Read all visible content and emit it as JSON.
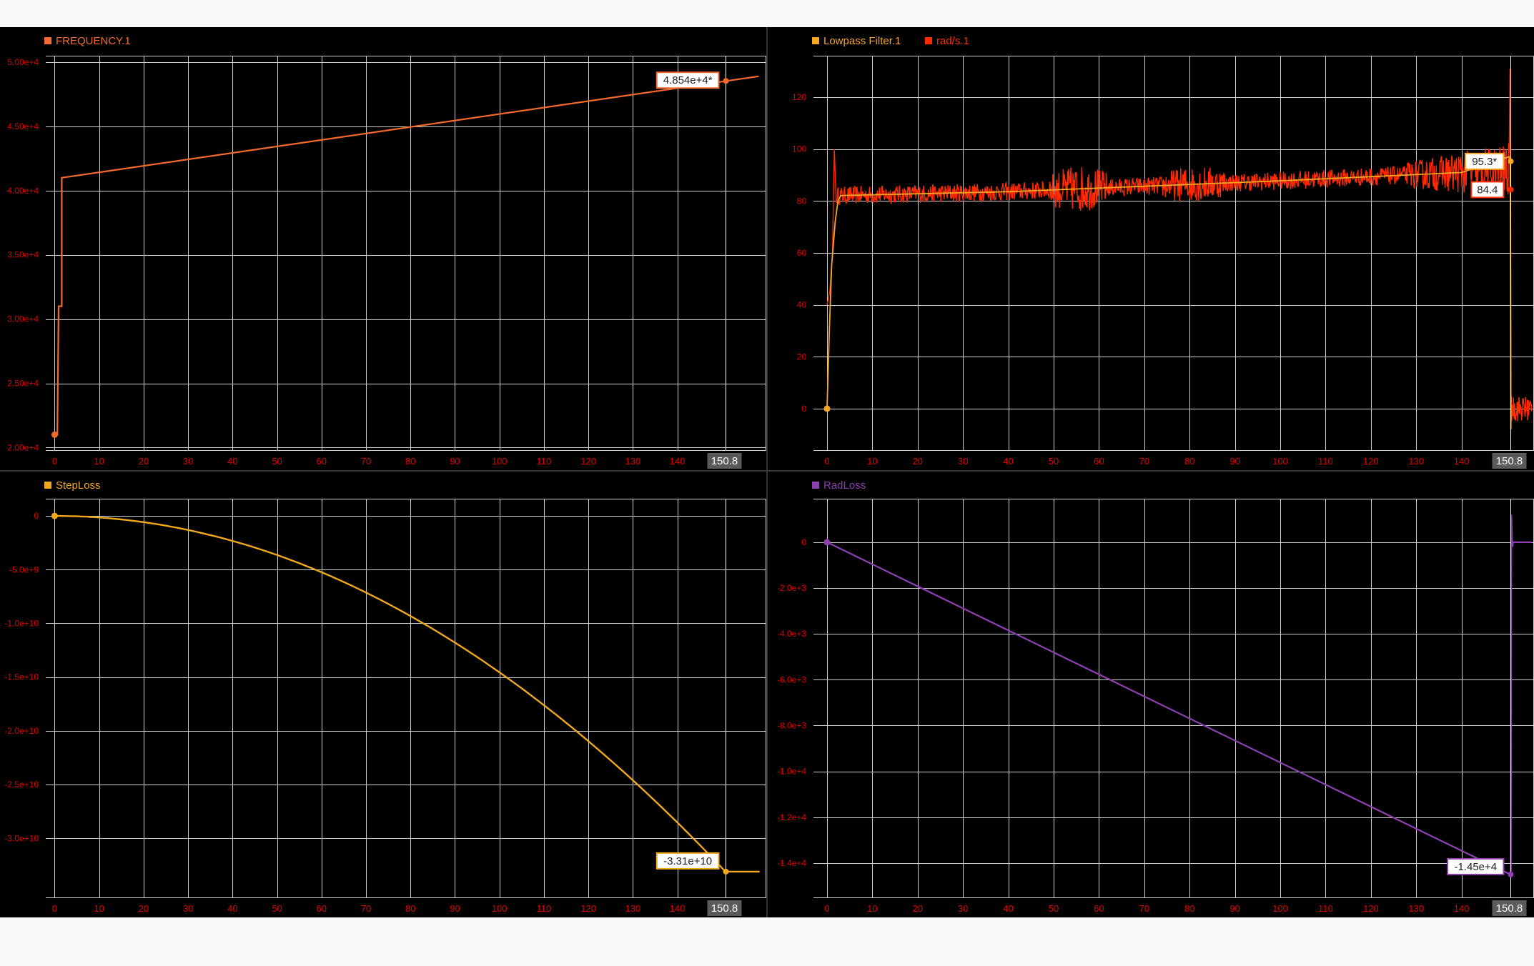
{
  "colors": {
    "frequency": "#f26a2e",
    "lowpass": "#f5a623",
    "rads": "#ff2a00",
    "steploss": "#f0a81c",
    "radloss": "#8e3fb0",
    "tick": "#e00000",
    "grid": "#cfcfcf",
    "cursor_bg": "#5a5a5a"
  },
  "cursor": {
    "x": 150.8,
    "label": "150.8"
  },
  "chart_data": [
    {
      "id": "frequency",
      "type": "line",
      "xlim": [
        -2,
        160
      ],
      "ylim": [
        19800,
        50500
      ],
      "x_ticks": [
        0,
        10,
        20,
        30,
        40,
        50,
        60,
        70,
        80,
        90,
        100,
        110,
        120,
        130,
        140
      ],
      "y_ticks": [
        20000,
        25000,
        30000,
        35000,
        40000,
        45000,
        50000
      ],
      "y_tick_labels": [
        "2.00e+4",
        "2.50e+4",
        "3.00e+4",
        "3.50e+4",
        "4.00e+4",
        "4.50e+4",
        "5.00e+4"
      ],
      "grid": true,
      "legend": "top-left",
      "series": [
        {
          "name": "FREQUENCY.1",
          "color": "#f26a2e",
          "x": [
            0,
            0.6,
            0.9,
            1.3,
            1.6,
            1.6,
            158.3
          ],
          "y": [
            21000,
            21000,
            31000,
            31000,
            31000,
            41000,
            48900
          ]
        }
      ],
      "readouts": [
        {
          "text": "4.854e+4*",
          "x": 150.8,
          "y": 48540,
          "color": "#f26a2e"
        }
      ],
      "start_marker": {
        "x": 0,
        "y": 21000
      }
    },
    {
      "id": "rads",
      "type": "line",
      "xlim": [
        -3,
        156
      ],
      "ylim": [
        -16,
        136
      ],
      "x_ticks": [
        0,
        10,
        20,
        30,
        40,
        50,
        60,
        70,
        80,
        90,
        100,
        110,
        120,
        130,
        140
      ],
      "y_ticks": [
        0,
        20,
        40,
        60,
        80,
        100,
        120
      ],
      "y_tick_labels": [
        "0",
        "20",
        "40",
        "60",
        "80",
        "100",
        "120"
      ],
      "grid": true,
      "legend": "top-left",
      "series": [
        {
          "name": "Lowpass Filter.1",
          "color": "#f5a623"
        },
        {
          "name": "rad/s.1",
          "color": "#ff2a00"
        }
      ],
      "readouts": [
        {
          "text": "95.3*",
          "x": 150.8,
          "y": 95.3,
          "color": "#f5a623"
        },
        {
          "text": "84.4",
          "x": 150.8,
          "y": 84.4,
          "color": "#ff2a00"
        }
      ],
      "start_marker": {
        "x": 0,
        "y": 0
      }
    },
    {
      "id": "steploss",
      "type": "line",
      "xlim": [
        -2,
        160
      ],
      "ylim": [
        -35500000000,
        1600000000
      ],
      "x_ticks": [
        0,
        10,
        20,
        30,
        40,
        50,
        60,
        70,
        80,
        90,
        100,
        110,
        120,
        130,
        140
      ],
      "y_ticks": [
        0,
        -5000000000,
        -10000000000,
        -15000000000,
        -20000000000,
        -25000000000,
        -30000000000
      ],
      "y_tick_labels": [
        "0",
        "-5.0e+9",
        "-1.0e+10",
        "-1.5e+10",
        "-2.0e+10",
        "-2.5e+10",
        "-3.0e+10"
      ],
      "grid": true,
      "legend": "top-left",
      "series": [
        {
          "name": "StepLoss",
          "color": "#f0a81c"
        }
      ],
      "readouts": [
        {
          "text": "-3.31e+10",
          "x": 150.8,
          "y": -33100000000,
          "color": "#f0a81c"
        }
      ],
      "start_marker": {
        "x": 0,
        "y": 0
      }
    },
    {
      "id": "radloss",
      "type": "line",
      "xlim": [
        -3,
        156
      ],
      "ylim": [
        -15500,
        1900
      ],
      "x_ticks": [
        0,
        10,
        20,
        30,
        40,
        50,
        60,
        70,
        80,
        90,
        100,
        110,
        120,
        130,
        140
      ],
      "y_ticks": [
        0,
        -2000,
        -4000,
        -6000,
        -8000,
        -10000,
        -12000,
        -14000
      ],
      "y_tick_labels": [
        "0",
        "-2.0e+3",
        "-4.0e+3",
        "-6.0e+3",
        "-8.0e+3",
        "-1.0e+4",
        "-1.2e+4",
        "-1.4e+4"
      ],
      "grid": true,
      "legend": "top-left",
      "series": [
        {
          "name": "RadLoss",
          "color": "#8e3fb0",
          "x": [
            0,
            150.8,
            150.9,
            151.0,
            151.2,
            151.4,
            155.5
          ],
          "y": [
            0,
            -14500,
            -14500,
            1200,
            -200,
            0,
            0
          ]
        }
      ],
      "readouts": [
        {
          "text": "-1.45e+4",
          "x": 150.8,
          "y": -14500,
          "color": "#8e3fb0"
        }
      ],
      "start_marker": {
        "x": 0,
        "y": 0
      }
    }
  ]
}
